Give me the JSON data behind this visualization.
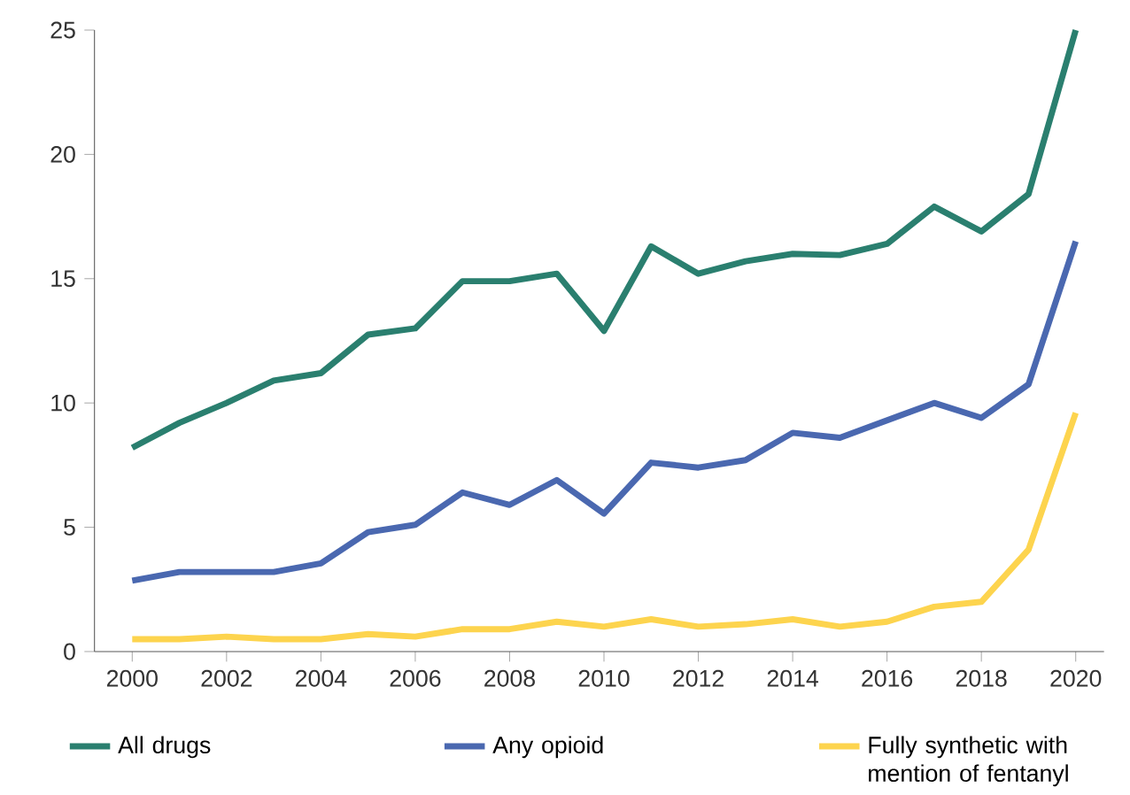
{
  "chart_data": {
    "type": "line",
    "x": [
      2000,
      2001,
      2002,
      2003,
      2004,
      2005,
      2006,
      2007,
      2008,
      2009,
      2010,
      2011,
      2012,
      2013,
      2014,
      2015,
      2016,
      2017,
      2018,
      2019,
      2020
    ],
    "series": [
      {
        "name": "All drugs",
        "color": "#2a7f6f",
        "values": [
          8.2,
          9.2,
          10.0,
          10.9,
          11.2,
          12.75,
          13.0,
          14.9,
          14.9,
          15.2,
          12.9,
          16.3,
          15.2,
          15.7,
          16.0,
          15.95,
          16.4,
          17.9,
          16.9,
          18.4,
          25.0
        ]
      },
      {
        "name": "Any opioid",
        "color": "#4a68b0",
        "values": [
          2.85,
          3.2,
          3.2,
          3.2,
          3.55,
          4.8,
          5.1,
          6.4,
          5.9,
          6.9,
          5.55,
          7.6,
          7.4,
          7.7,
          8.8,
          8.6,
          9.3,
          10.0,
          9.4,
          10.75,
          16.5
        ]
      },
      {
        "name": "Fully synthetic with mention of fentanyl",
        "color": "#fdd44e",
        "values": [
          0.5,
          0.5,
          0.6,
          0.5,
          0.5,
          0.7,
          0.6,
          0.9,
          0.9,
          1.2,
          1.0,
          1.3,
          1.0,
          1.1,
          1.3,
          1.0,
          1.2,
          1.8,
          2.0,
          4.1,
          9.6
        ]
      }
    ],
    "xlim": [
      1999.2,
      2020.6
    ],
    "ylim": [
      0,
      25
    ],
    "xticks": [
      2000,
      2002,
      2004,
      2006,
      2008,
      2010,
      2012,
      2014,
      2016,
      2018,
      2020
    ],
    "yticks": [
      0,
      5,
      10,
      15,
      20,
      25
    ],
    "grid": false,
    "legend": "bottom",
    "marker": "none",
    "line_style": "solid"
  }
}
